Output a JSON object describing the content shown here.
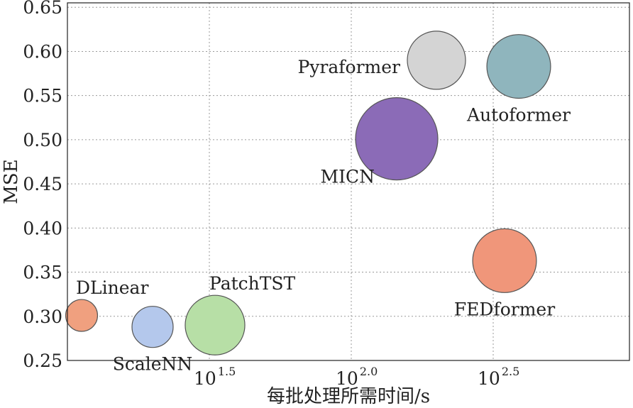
{
  "chart_data": {
    "type": "scatter",
    "subtype": "bubble",
    "xlabel": "每批处理所需时间/s",
    "ylabel": "MSE",
    "x_scale": "log10",
    "xlim": [
      1.0,
      2.98
    ],
    "ylim": [
      0.25,
      0.655
    ],
    "x_ticks": [
      {
        "base": "10",
        "exp": "1.5",
        "value": 1.5
      },
      {
        "base": "10",
        "exp": "2.0",
        "value": 2.0
      },
      {
        "base": "10",
        "exp": "2.5",
        "value": 2.5
      }
    ],
    "y_ticks": [
      "0.25",
      "0.30",
      "0.35",
      "0.40",
      "0.45",
      "0.50",
      "0.55",
      "0.60",
      "0.65"
    ],
    "grid": true,
    "points": [
      {
        "name": "DLinear",
        "log10_time": 1.05,
        "mse": 0.301,
        "size": 0.6,
        "color": "#f0a07f",
        "label_pos": "top-right"
      },
      {
        "name": "ScaleNN",
        "log10_time": 1.3,
        "mse": 0.288,
        "size": 1.0,
        "color": "#b4c8ec",
        "label_pos": "bottom"
      },
      {
        "name": "PatchTST",
        "log10_time": 1.52,
        "mse": 0.29,
        "size": 2.1,
        "color": "#b7dfa6",
        "label_pos": "top-right"
      },
      {
        "name": "MICN",
        "log10_time": 2.16,
        "mse": 0.501,
        "size": 4.0,
        "color": "#8b6bb7",
        "label_pos": "bottom-left"
      },
      {
        "name": "Pyraformer",
        "log10_time": 2.3,
        "mse": 0.59,
        "size": 2.0,
        "color": "#d4d4d4",
        "label_pos": "left"
      },
      {
        "name": "Autoformer",
        "log10_time": 2.59,
        "mse": 0.583,
        "size": 2.4,
        "color": "#8fb5bd",
        "label_pos": "bottom"
      },
      {
        "name": "FEDformer",
        "log10_time": 2.54,
        "mse": 0.363,
        "size": 2.4,
        "color": "#f0967a",
        "label_pos": "bottom"
      }
    ]
  }
}
